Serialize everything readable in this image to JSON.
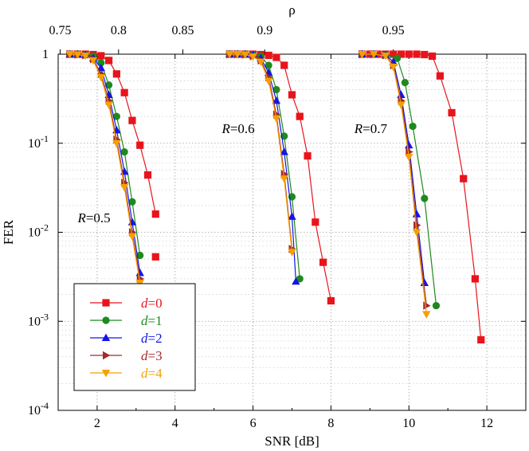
{
  "chart_data": {
    "type": "line",
    "title": "",
    "xlabel": "SNR [dB]",
    "ylabel": "FER",
    "top_axis_label": "ρ",
    "xlim": [
      1,
      13
    ],
    "ylim": [
      0.0001,
      1
    ],
    "yscale": "log",
    "grid": true,
    "x_ticks": [
      2,
      4,
      6,
      8,
      10,
      12
    ],
    "x_tick_labels": [
      "2",
      "4",
      "6",
      "8",
      "10",
      "12"
    ],
    "y_ticks": [
      1,
      0.1,
      0.01,
      0.001,
      0.0001
    ],
    "y_tick_labels": [
      {
        "base": "1",
        "exp": ""
      },
      {
        "base": "10",
        "exp": "-1"
      },
      {
        "base": "10",
        "exp": "-2"
      },
      {
        "base": "10",
        "exp": "-3"
      },
      {
        "base": "10",
        "exp": "-4"
      }
    ],
    "top_ticks": [
      {
        "label": "0.75",
        "snr": 1.05
      },
      {
        "label": "0.8",
        "snr": 2.55
      },
      {
        "label": "0.85",
        "snr": 4.2
      },
      {
        "label": "0.9",
        "snr": 6.3
      },
      {
        "label": "0.95",
        "snr": 9.6
      }
    ],
    "annotations": [
      {
        "prefix": "R",
        "text": "=0.5",
        "x": 1.5,
        "y": 0.013
      },
      {
        "prefix": "R",
        "text": "=0.6",
        "x": 5.2,
        "y": 0.13
      },
      {
        "prefix": "R",
        "text": "=0.7",
        "x": 8.6,
        "y": 0.13
      }
    ],
    "legend_position": "bottom-left",
    "series": [
      {
        "name": "d=0",
        "label_var": "d",
        "label_val": "=0",
        "color": "#e8141c",
        "marker": "square",
        "curves": [
          {
            "x": [
              1.3,
              1.5,
              1.7,
              1.9,
              2.1,
              2.3,
              2.5,
              2.7,
              2.9,
              3.1,
              3.3,
              3.5
            ],
            "y": [
              1.0,
              1.0,
              1.0,
              0.99,
              0.96,
              0.85,
              0.6,
              0.37,
              0.18,
              0.095,
              0.044,
              0.016
            ]
          },
          {
            "x": [
              3.5
            ],
            "y": [
              0.0053
            ]
          },
          {
            "x": [
              5.4,
              5.6,
              5.8,
              6.0,
              6.2,
              6.4,
              6.6,
              6.8,
              7.0,
              7.2,
              7.4,
              7.6,
              7.8,
              8.0
            ],
            "y": [
              1.0,
              1.0,
              1.0,
              1.0,
              0.99,
              0.97,
              0.92,
              0.75,
              0.35,
              0.2,
              0.072,
              0.013,
              0.0046,
              0.0017
            ]
          },
          {
            "x": [
              8.8,
              9.0,
              9.2,
              9.4,
              9.6,
              9.8,
              10.0,
              10.2,
              10.4,
              10.6,
              10.8,
              11.1,
              11.4,
              11.7,
              11.85
            ],
            "y": [
              1.0,
              1.0,
              1.0,
              1.0,
              1.0,
              1.0,
              1.0,
              1.0,
              0.99,
              0.95,
              0.57,
              0.22,
              0.04,
              0.003,
              0.00062
            ]
          }
        ]
      },
      {
        "name": "d=1",
        "label_var": "d",
        "label_val": "=1",
        "color": "#1e8a1e",
        "marker": "circle",
        "curves": [
          {
            "x": [
              1.3,
              1.5,
              1.7,
              1.9,
              2.1,
              2.3,
              2.5,
              2.7,
              2.9,
              3.1
            ],
            "y": [
              1.0,
              1.0,
              0.99,
              0.95,
              0.8,
              0.45,
              0.2,
              0.08,
              0.022,
              0.0055
            ]
          },
          {
            "x": [
              5.4,
              5.6,
              5.8,
              6.0,
              6.2,
              6.4,
              6.6,
              6.8,
              7.0,
              7.2
            ],
            "y": [
              1.0,
              1.0,
              1.0,
              0.99,
              0.95,
              0.75,
              0.4,
              0.12,
              0.025,
              0.003
            ]
          },
          {
            "x": [
              8.8,
              9.1,
              9.4,
              9.7,
              9.9,
              10.1,
              10.4,
              10.7
            ],
            "y": [
              1.0,
              1.0,
              0.99,
              0.9,
              0.48,
              0.155,
              0.024,
              0.0015
            ]
          }
        ]
      },
      {
        "name": "d=2",
        "label_var": "d",
        "label_val": "=2",
        "color": "#1414e8",
        "marker": "triangle-up",
        "curves": [
          {
            "x": [
              1.3,
              1.5,
              1.7,
              1.9,
              2.1,
              2.3,
              2.5,
              2.7,
              2.9,
              3.1
            ],
            "y": [
              1.0,
              1.0,
              0.98,
              0.9,
              0.7,
              0.35,
              0.14,
              0.048,
              0.013,
              0.0035
            ]
          },
          {
            "x": [
              5.4,
              5.6,
              5.8,
              6.0,
              6.2,
              6.4,
              6.6,
              6.8,
              7.0,
              7.1
            ],
            "y": [
              1.0,
              1.0,
              1.0,
              0.98,
              0.9,
              0.62,
              0.3,
              0.08,
              0.015,
              0.0028
            ]
          },
          {
            "x": [
              8.8,
              9.1,
              9.4,
              9.6,
              9.8,
              10.0,
              10.2,
              10.4
            ],
            "y": [
              1.0,
              1.0,
              0.98,
              0.82,
              0.35,
              0.095,
              0.016,
              0.0027
            ]
          }
        ]
      },
      {
        "name": "d=3",
        "label_var": "d",
        "label_val": "=3",
        "color": "#a52a2a",
        "marker": "triangle-right",
        "curves": [
          {
            "x": [
              1.3,
              1.5,
              1.7,
              1.9,
              2.1,
              2.3,
              2.5,
              2.7,
              2.9,
              3.1
            ],
            "y": [
              1.0,
              0.99,
              0.97,
              0.88,
              0.6,
              0.3,
              0.11,
              0.036,
              0.01,
              0.003
            ]
          },
          {
            "x": [
              5.4,
              5.6,
              5.8,
              6.0,
              6.2,
              6.4,
              6.6,
              6.8,
              7.0
            ],
            "y": [
              1.0,
              1.0,
              0.99,
              0.95,
              0.85,
              0.55,
              0.21,
              0.045,
              0.0065
            ]
          },
          {
            "x": [
              8.8,
              9.1,
              9.4,
              9.6,
              9.8,
              10.0,
              10.2,
              10.45
            ],
            "y": [
              1.0,
              1.0,
              0.97,
              0.75,
              0.3,
              0.08,
              0.012,
              0.0015
            ]
          }
        ]
      },
      {
        "name": "d=4",
        "label_var": "d",
        "label_val": "=4",
        "color": "#f5a000",
        "marker": "triangle-down",
        "curves": [
          {
            "x": [
              1.3,
              1.5,
              1.7,
              1.9,
              2.1,
              2.3,
              2.5,
              2.7,
              2.9,
              3.1
            ],
            "y": [
              1.0,
              0.99,
              0.96,
              0.85,
              0.55,
              0.27,
              0.1,
              0.032,
              0.009,
              0.0027
            ]
          },
          {
            "x": [
              5.4,
              5.6,
              5.8,
              6.0,
              6.2,
              6.4,
              6.6,
              6.8,
              7.0
            ],
            "y": [
              1.0,
              1.0,
              0.99,
              0.94,
              0.82,
              0.5,
              0.19,
              0.04,
              0.006
            ]
          },
          {
            "x": [
              8.8,
              9.1,
              9.4,
              9.6,
              9.8,
              10.0,
              10.2,
              10.45
            ],
            "y": [
              1.0,
              1.0,
              0.96,
              0.72,
              0.27,
              0.07,
              0.01,
              0.0012
            ]
          }
        ]
      }
    ]
  }
}
